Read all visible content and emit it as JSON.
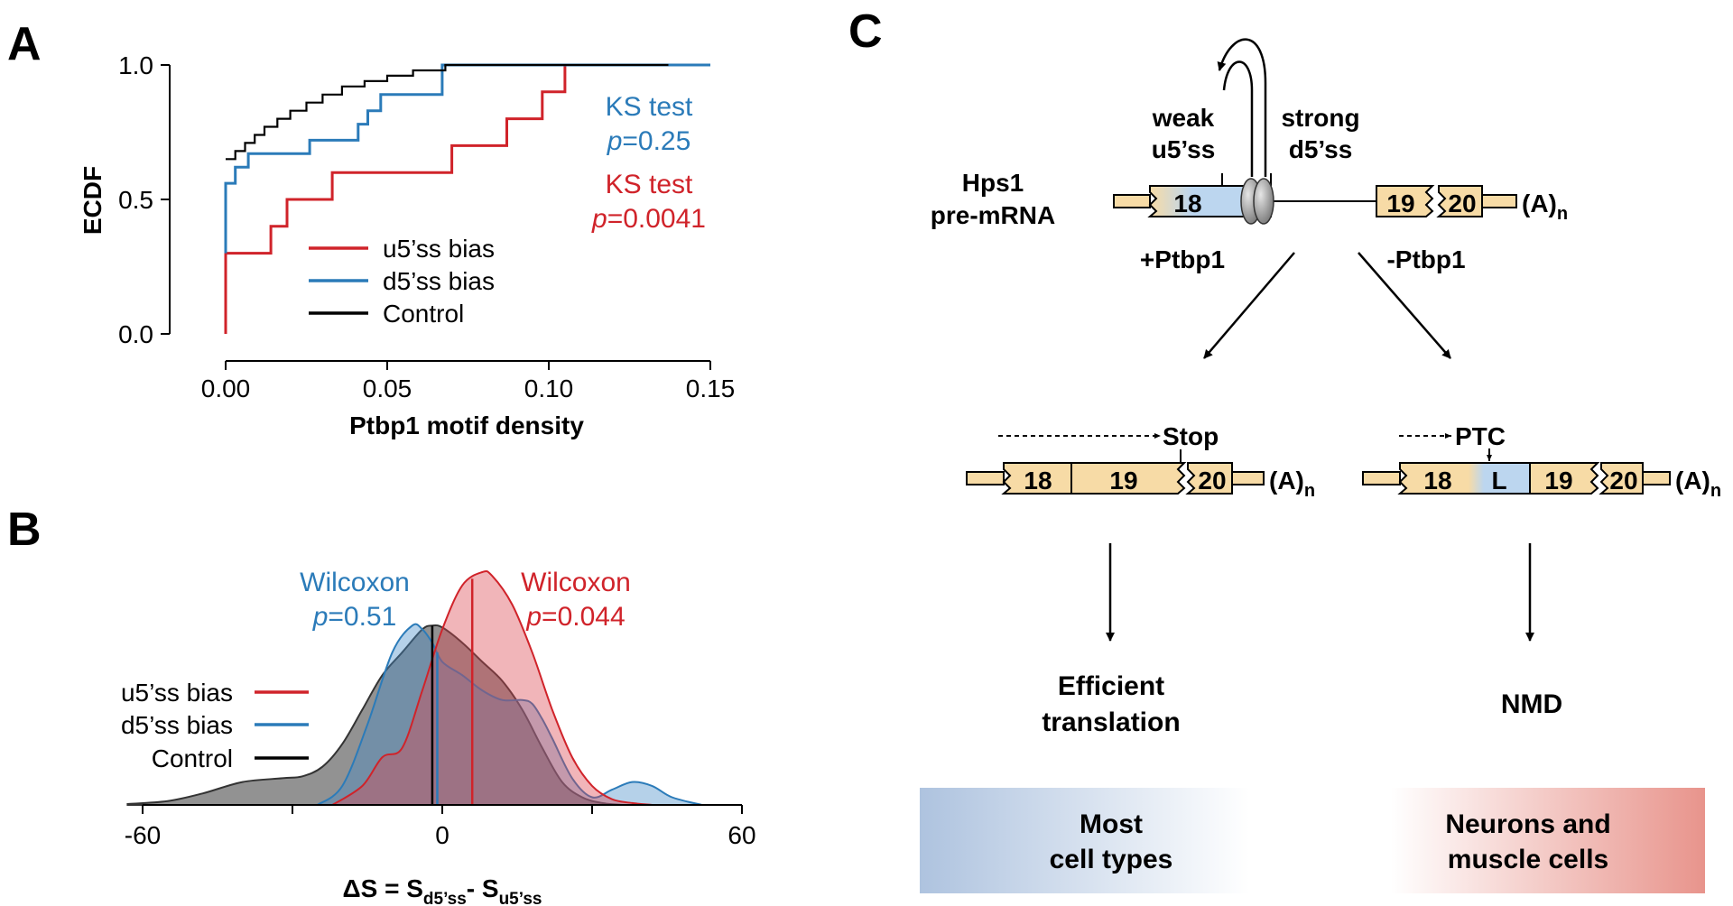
{
  "panels": {
    "a": "A",
    "b": "B",
    "c": "C"
  },
  "colors": {
    "red": "#d0232a",
    "blue": "#2b7bb9",
    "black": "#000000",
    "exon": "#f7dba6",
    "intron_seg": "#bcd6ef",
    "grad_blue": "#aec3df",
    "grad_red": "#e8948c"
  },
  "chart_data": [
    {
      "type": "line",
      "panel": "A",
      "ylabel": "ECDF",
      "xlabel": "Ptbp1 motif density",
      "xlim": [
        0,
        0.15
      ],
      "ylim": [
        0,
        1
      ],
      "xticks": [
        "0.00",
        "0.05",
        "0.10",
        "0.15"
      ],
      "yticks": [
        "0.0",
        "0.5",
        "1.0"
      ],
      "legend": [
        "u5’ss bias",
        "d5’ss bias",
        "Control"
      ],
      "series": [
        {
          "name": "u5’ss bias",
          "color": "#d0232a",
          "points": [
            [
              0,
              0
            ],
            [
              0,
              0.3
            ],
            [
              0.014,
              0.3
            ],
            [
              0.014,
              0.4
            ],
            [
              0.019,
              0.4
            ],
            [
              0.019,
              0.5
            ],
            [
              0.033,
              0.5
            ],
            [
              0.033,
              0.6
            ],
            [
              0.07,
              0.6
            ],
            [
              0.07,
              0.7
            ],
            [
              0.087,
              0.7
            ],
            [
              0.087,
              0.8
            ],
            [
              0.098,
              0.8
            ],
            [
              0.098,
              0.9
            ],
            [
              0.105,
              0.9
            ],
            [
              0.105,
              1.0
            ],
            [
              0.15,
              1.0
            ]
          ]
        },
        {
          "name": "d5’ss bias",
          "color": "#2b7bb9",
          "points": [
            [
              0,
              0.3
            ],
            [
              0,
              0.56
            ],
            [
              0.003,
              0.56
            ],
            [
              0.003,
              0.62
            ],
            [
              0.007,
              0.62
            ],
            [
              0.007,
              0.67
            ],
            [
              0.026,
              0.67
            ],
            [
              0.026,
              0.72
            ],
            [
              0.041,
              0.72
            ],
            [
              0.041,
              0.78
            ],
            [
              0.044,
              0.78
            ],
            [
              0.044,
              0.83
            ],
            [
              0.048,
              0.83
            ],
            [
              0.048,
              0.89
            ],
            [
              0.067,
              0.89
            ],
            [
              0.067,
              1.0
            ],
            [
              0.15,
              1.0
            ]
          ]
        },
        {
          "name": "Control",
          "color": "#000000",
          "points": [
            [
              0,
              0.65
            ],
            [
              0.003,
              0.65
            ],
            [
              0.003,
              0.68
            ],
            [
              0.006,
              0.68
            ],
            [
              0.006,
              0.71
            ],
            [
              0.009,
              0.71
            ],
            [
              0.009,
              0.74
            ],
            [
              0.012,
              0.74
            ],
            [
              0.012,
              0.77
            ],
            [
              0.016,
              0.77
            ],
            [
              0.016,
              0.8
            ],
            [
              0.02,
              0.8
            ],
            [
              0.02,
              0.83
            ],
            [
              0.025,
              0.83
            ],
            [
              0.025,
              0.86
            ],
            [
              0.03,
              0.86
            ],
            [
              0.03,
              0.89
            ],
            [
              0.036,
              0.89
            ],
            [
              0.036,
              0.92
            ],
            [
              0.043,
              0.92
            ],
            [
              0.043,
              0.94
            ],
            [
              0.05,
              0.94
            ],
            [
              0.05,
              0.96
            ],
            [
              0.058,
              0.96
            ],
            [
              0.058,
              0.98
            ],
            [
              0.068,
              0.98
            ],
            [
              0.068,
              1.0
            ],
            [
              0.137,
              1.0
            ]
          ]
        }
      ],
      "annotations": [
        {
          "line1": "KS test",
          "p_italic": "p",
          "p_rest": "=0.25",
          "color": "#2b7bb9"
        },
        {
          "line1": "KS test",
          "p_italic": "p",
          "p_rest": "=0.0041",
          "color": "#d0232a"
        }
      ]
    },
    {
      "type": "area",
      "panel": "B",
      "xlabel_main": "ΔS = S",
      "xlabel_sub1": "d5’ss",
      "xlabel_mid": "- S",
      "xlabel_sub2": "u5’ss",
      "xlim": [
        -60,
        60
      ],
      "xticks": [
        "-60",
        "0",
        "60"
      ],
      "legend": [
        "u5’ss bias",
        "d5’ss bias",
        "Control"
      ],
      "series": [
        {
          "name": "Control",
          "color": "#555555",
          "median": -2,
          "x": [
            -63,
            -55,
            -48,
            -40,
            -32,
            -28,
            -24,
            -20,
            -16,
            -12,
            -8,
            -4,
            -2,
            0,
            4,
            8,
            12,
            16,
            20,
            24,
            28,
            32,
            36
          ],
          "y": [
            0.0005,
            0.002,
            0.006,
            0.012,
            0.014,
            0.015,
            0.02,
            0.032,
            0.05,
            0.068,
            0.08,
            0.092,
            0.094,
            0.093,
            0.085,
            0.075,
            0.065,
            0.05,
            0.03,
            0.012,
            0.004,
            0.001,
            0
          ]
        },
        {
          "name": "d5’ss bias",
          "color": "#2b7bb9",
          "median": -1,
          "x": [
            -25,
            -20,
            -15,
            -10,
            -6,
            -4,
            -2,
            0,
            4,
            8,
            12,
            16,
            18,
            20,
            22,
            26,
            30,
            34,
            38,
            42,
            46,
            52
          ],
          "y": [
            0,
            0.01,
            0.042,
            0.08,
            0.094,
            0.092,
            0.085,
            0.075,
            0.068,
            0.06,
            0.055,
            0.055,
            0.053,
            0.045,
            0.035,
            0.014,
            0.004,
            0.008,
            0.012,
            0.01,
            0.004,
            0
          ]
        },
        {
          "name": "u5’ss bias",
          "color": "#d0232a",
          "median": 6,
          "x": [
            -22,
            -16,
            -12,
            -8,
            -4,
            0,
            4,
            8,
            10,
            14,
            18,
            22,
            26,
            30,
            34,
            38,
            42
          ],
          "y": [
            0,
            0.01,
            0.025,
            0.03,
            0.06,
            0.092,
            0.115,
            0.122,
            0.12,
            0.105,
            0.08,
            0.05,
            0.025,
            0.01,
            0.003,
            0.001,
            0
          ]
        }
      ],
      "annotations": [
        {
          "line1": "Wilcoxon",
          "p_italic": "p",
          "p_rest": "=0.51",
          "color": "#2b7bb9"
        },
        {
          "line1": "Wilcoxon",
          "p_italic": "p",
          "p_rest": "=0.044",
          "color": "#d0232a"
        }
      ]
    }
  ],
  "diagram": {
    "gene": "Hps1",
    "premrna": "pre-mRNA",
    "weak1": "weak",
    "weak2": "u5’ss",
    "strong1": "strong",
    "strong2": "d5’ss",
    "plus_ptbp1": "+Ptbp1",
    "minus_ptbp1": "-Ptbp1",
    "exon18": "18",
    "exon19": "19",
    "exon20": "20",
    "exonL": "L",
    "polya": "(A)",
    "polya_sub": "n",
    "stop": "Stop",
    "ptc": "PTC",
    "efficient1": "Efficient",
    "efficient2": "translation",
    "nmd": "NMD",
    "most1": "Most",
    "most2": "cell types",
    "neurons1": "Neurons and",
    "neurons2": "muscle cells"
  }
}
